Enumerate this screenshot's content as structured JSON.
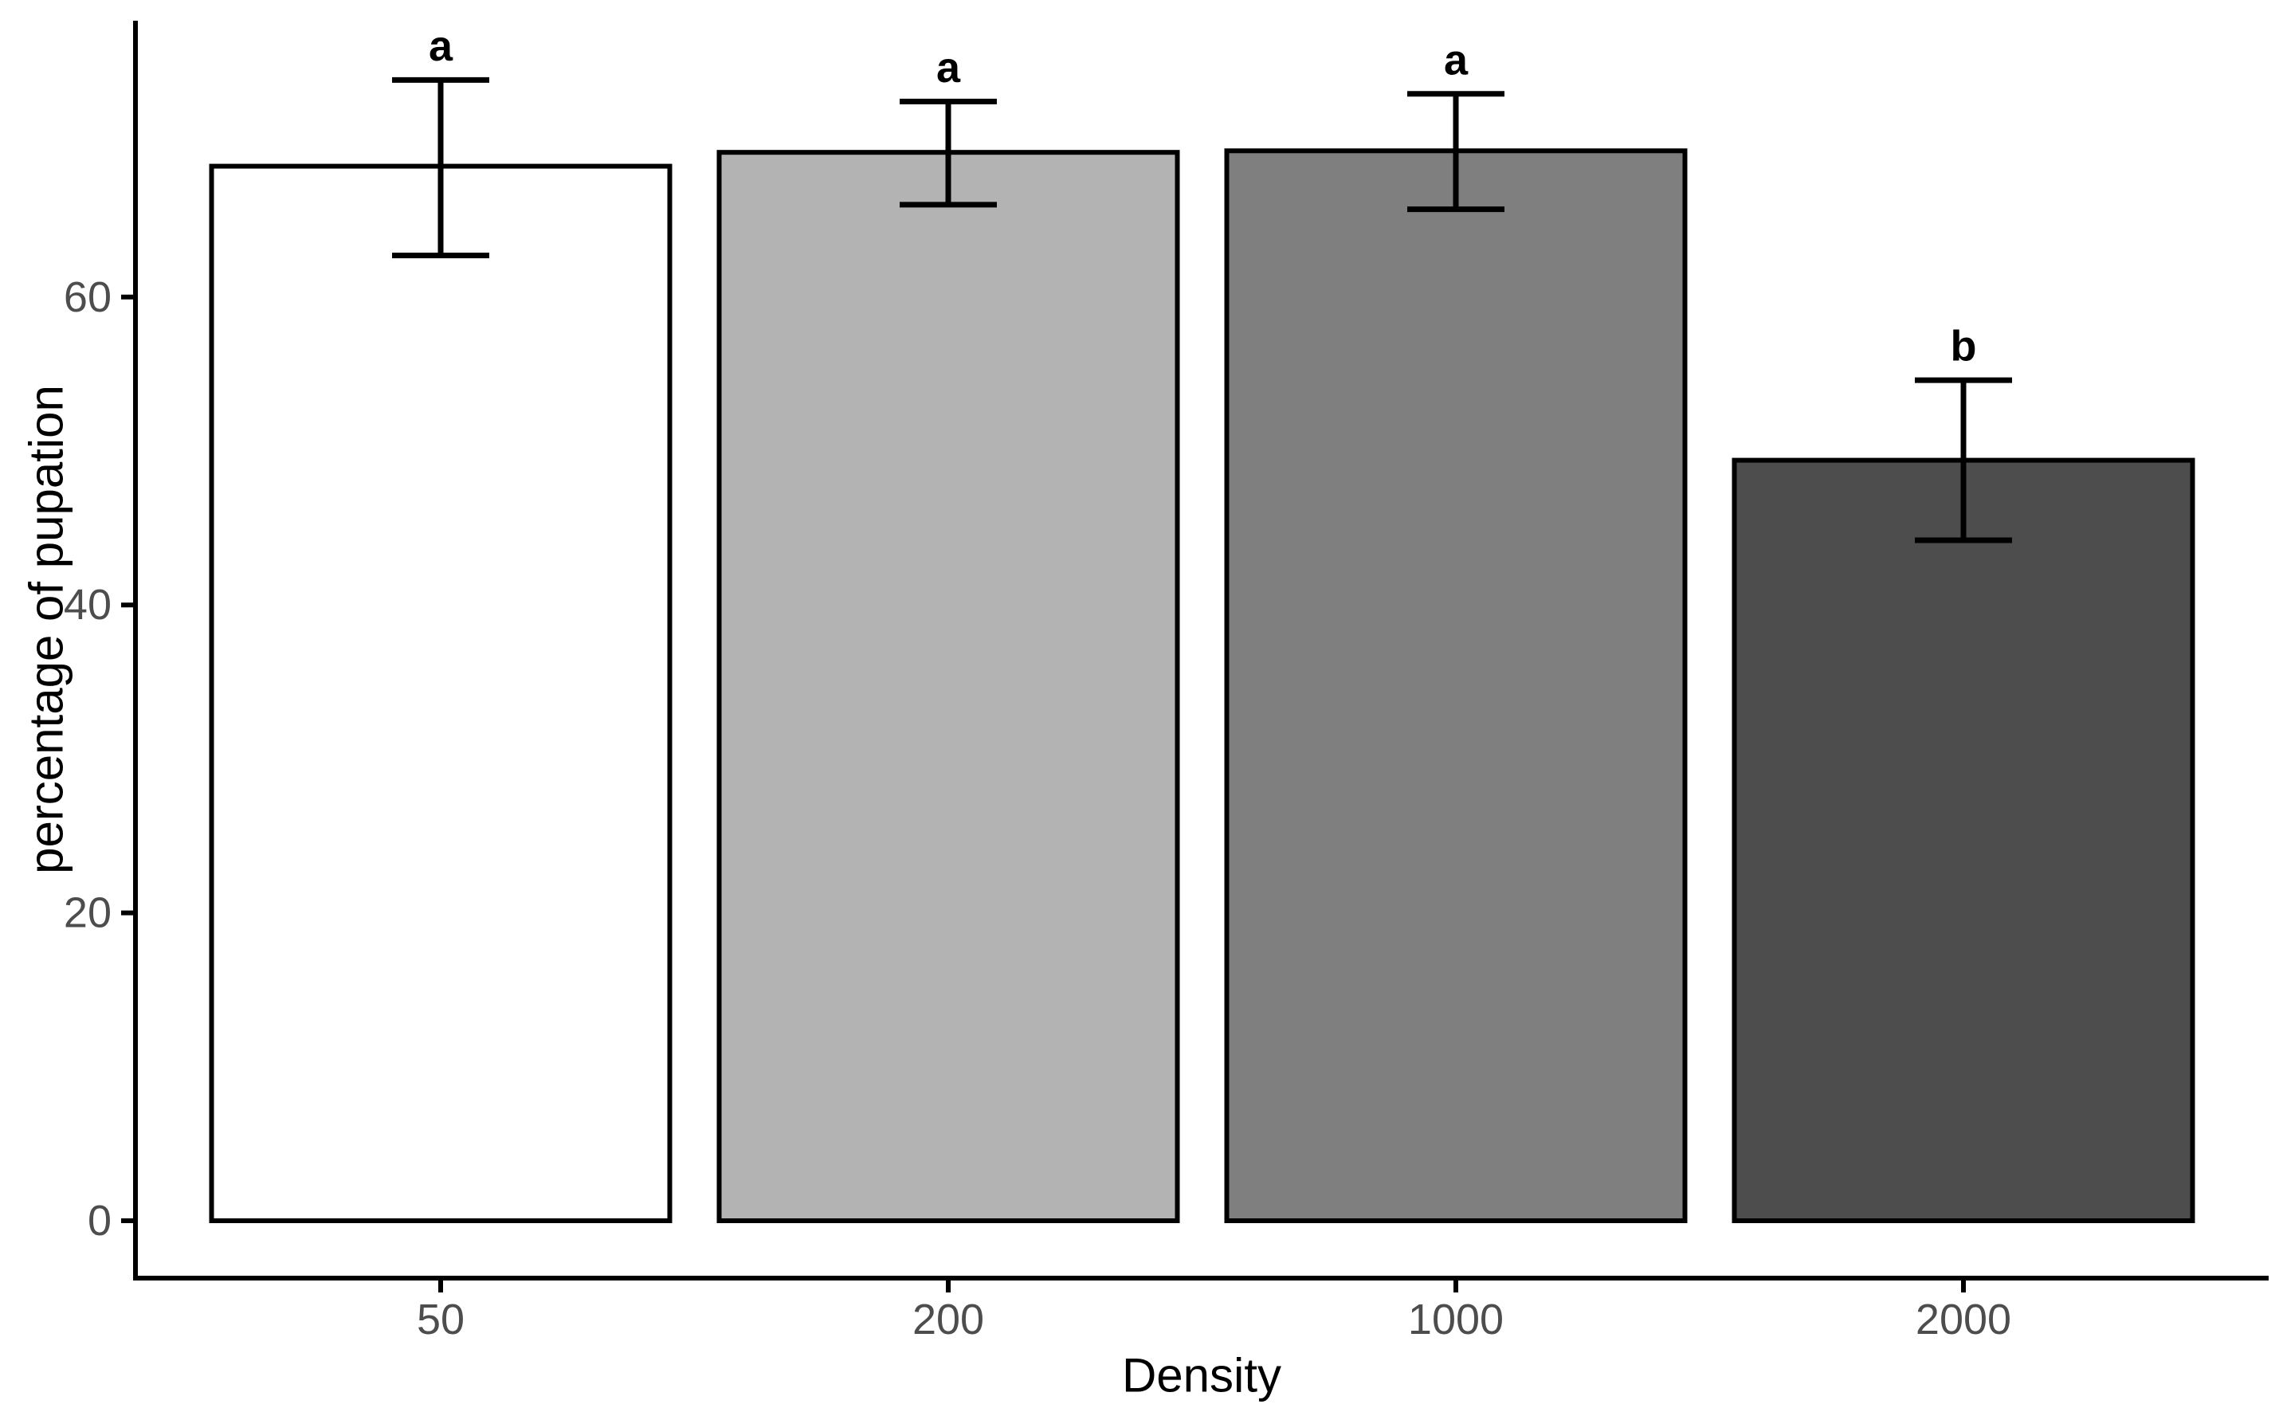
{
  "chart_data": {
    "type": "bar",
    "title": "",
    "xlabel": "Density",
    "ylabel": "percentage of pupation",
    "categories": [
      "50",
      "200",
      "1000",
      "2000"
    ],
    "series": [
      {
        "name": "percentage of pupation",
        "values": [
          68.5,
          69.4,
          69.5,
          49.4
        ]
      }
    ],
    "error_bars": {
      "low": [
        62.7,
        66.0,
        65.7,
        44.2
      ],
      "high": [
        74.1,
        72.7,
        73.2,
        54.6
      ]
    },
    "significance_letters": [
      "a",
      "a",
      "a",
      "b"
    ],
    "bar_fill_colors": [
      "#FFFFFF",
      "#B3B3B3",
      "#7F7F7F",
      "#4D4D4D"
    ],
    "bar_stroke_color": "#000000",
    "errorbar_color": "#000000",
    "axis_line_color": "#000000",
    "tick_label_color": "#4D4D4D",
    "axis_title_color": "#000000",
    "letter_color": "#000000",
    "background_color": "#FFFFFF",
    "yticks": [
      0,
      20,
      40,
      60
    ],
    "ylim": [
      -3.9,
      77.9
    ],
    "grid": false,
    "legend_position": "none"
  }
}
